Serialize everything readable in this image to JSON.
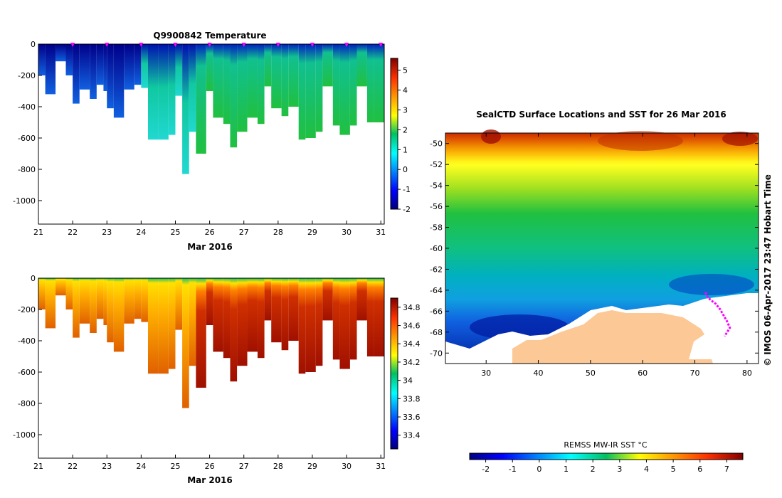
{
  "chart_data": [
    {
      "type": "heatmap",
      "title": "Q9900842  Temperature",
      "xlabel": "Mar 2016",
      "x_ticks": [
        "21",
        "22",
        "23",
        "24",
        "25",
        "26",
        "27",
        "28",
        "29",
        "30",
        "31"
      ],
      "xlim": [
        21,
        31.1
      ],
      "y_ticks": [
        "0",
        "-200",
        "-400",
        "-600",
        "-800",
        "-1000"
      ],
      "ylim": [
        -1150,
        0
      ],
      "colorbar_ticks": [
        "5",
        "4",
        "3",
        "2",
        "1",
        "0",
        "-1",
        "-2"
      ],
      "colorbar_range": [
        -2,
        5.6
      ],
      "surface_markers_days": [
        22,
        23,
        24,
        25,
        26,
        27,
        28,
        29,
        30,
        31
      ],
      "profile_days": [
        21,
        21.2,
        21.5,
        21.8,
        22.0,
        22.2,
        22.5,
        22.7,
        22.9,
        23.0,
        23.2,
        23.5,
        23.8,
        24.0,
        24.2,
        24.5,
        24.8,
        25.0,
        25.2,
        25.4,
        25.6,
        25.9,
        26.1,
        26.4,
        26.6,
        26.8,
        27.1,
        27.4,
        27.6,
        27.8,
        28.1,
        28.3,
        28.6,
        28.8,
        29.1,
        29.3,
        29.6,
        29.8,
        30.1,
        30.3,
        30.6,
        30.8
      ],
      "profile_max_depth_m": [
        200,
        320,
        110,
        200,
        380,
        290,
        350,
        260,
        300,
        410,
        470,
        290,
        260,
        280,
        610,
        610,
        580,
        330,
        830,
        560,
        700,
        300,
        470,
        510,
        660,
        560,
        470,
        510,
        270,
        410,
        460,
        400,
        610,
        600,
        560,
        270,
        520,
        580,
        520,
        270,
        500,
        500
      ]
    },
    {
      "type": "heatmap",
      "title": "",
      "xlabel": "Mar 2016",
      "x_ticks": [
        "21",
        "22",
        "23",
        "24",
        "25",
        "26",
        "27",
        "28",
        "29",
        "30",
        "31"
      ],
      "xlim": [
        21,
        31.1
      ],
      "y_ticks": [
        "0",
        "-200",
        "-400",
        "-600",
        "-800",
        "-1000"
      ],
      "ylim": [
        -1150,
        0
      ],
      "colorbar_ticks": [
        "34.8",
        "34.6",
        "34.4",
        "34.2",
        "34",
        "33.8",
        "33.6",
        "33.4"
      ],
      "colorbar_range": [
        33.25,
        34.9
      ]
    },
    {
      "type": "heatmap",
      "title": "SealCTD Surface Locations and SST for 26 Mar 2016",
      "x_ticks": [
        "30",
        "40",
        "50",
        "60",
        "70",
        "80"
      ],
      "xlim": [
        22.2,
        82.2
      ],
      "y_ticks": [
        "-50",
        "-52",
        "-54",
        "-56",
        "-58",
        "-60",
        "-62",
        "-64",
        "-66",
        "-68",
        "-70"
      ],
      "ylim": [
        -71.0,
        -49.0
      ],
      "colorbar_title": "REMSS MW-IR SST °C",
      "colorbar_ticks": [
        "-2",
        "-1",
        "0",
        "1",
        "2",
        "3",
        "4",
        "5",
        "6",
        "7"
      ],
      "colorbar_range": [
        -2.6,
        7.6
      ],
      "track_lon": [
        72.0,
        72.5,
        73.2,
        74.0,
        74.8,
        75.5,
        76.2,
        76.7,
        76.2,
        75.7
      ],
      "track_lat": [
        -64.2,
        -64.7,
        -65.0,
        -65.3,
        -65.8,
        -66.4,
        -67.0,
        -67.6,
        -68.0,
        -68.4
      ]
    }
  ],
  "side_label": "© IMOS 06-Apr-2017 23:47 Hobart Time"
}
